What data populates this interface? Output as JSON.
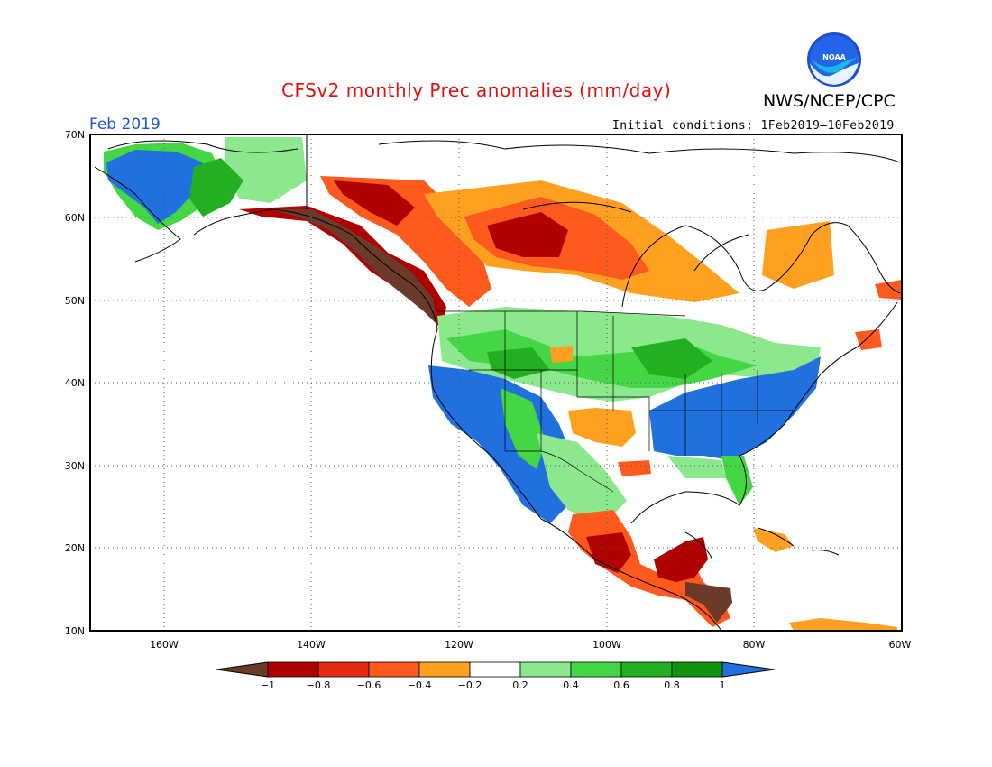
{
  "header": {
    "title": "CFSv2 monthly Prec anomalies (mm/day)",
    "org": "NWS/NCEP/CPC",
    "logo_text": "NOAA",
    "month": "Feb 2019",
    "initial_conditions": "Initial conditions: 1Feb2019–10Feb2019"
  },
  "map": {
    "region": "North America",
    "lon_range": [
      -170,
      -60
    ],
    "lat_range": [
      10,
      70
    ],
    "lat_ticks": [
      "70N",
      "60N",
      "50N",
      "40N",
      "30N",
      "20N",
      "10N"
    ],
    "lon_ticks": [
      "160W",
      "140W",
      "120W",
      "100W",
      "80W",
      "60W"
    ]
  },
  "legend": {
    "labels": [
      "−1",
      "−0.8",
      "−0.6",
      "−0.4",
      "−0.2",
      "0.2",
      "0.4",
      "0.6",
      "0.8",
      "1"
    ],
    "colors": [
      "#6b3a2a",
      "#b00000",
      "#e42a10",
      "#ff5a1e",
      "#ffa020",
      "#ffffff",
      "#8ce88c",
      "#44d644",
      "#22b022",
      "#109410",
      "#2070e0"
    ]
  }
}
